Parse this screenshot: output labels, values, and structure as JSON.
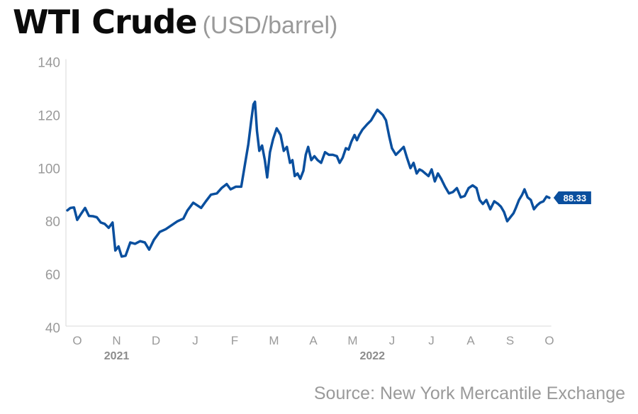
{
  "header": {
    "title": "WTI Crude",
    "subtitle": "(USD/barrel)"
  },
  "source": "Source: New York Mercantile Exchange",
  "colors": {
    "line": "#0a4f9e",
    "label_bg": "#0a4f9e",
    "axis_text": "#9a9a9a",
    "year_text": "#8c8c8c"
  },
  "chart_data": {
    "type": "line",
    "title": "WTI Crude",
    "subtitle": "(USD/barrel)",
    "ylim": [
      40,
      140
    ],
    "yticks": [
      40,
      60,
      80,
      100,
      120,
      140
    ],
    "xlim": [
      0,
      12.3
    ],
    "month_labels": [
      "O",
      "N",
      "D",
      "J",
      "F",
      "M",
      "A",
      "M",
      "J",
      "J",
      "A",
      "S",
      "O"
    ],
    "year_labels": [
      {
        "label": "2021",
        "month_index": 1
      },
      {
        "label": "2022",
        "month_index": 7.5
      }
    ],
    "grid": false,
    "end_value_label": "88.33",
    "series": [
      {
        "values": [
          [
            0.0,
            83.6
          ],
          [
            0.08,
            84.5
          ],
          [
            0.17,
            84.7
          ],
          [
            0.25,
            80.0
          ],
          [
            0.35,
            82.3
          ],
          [
            0.45,
            84.5
          ],
          [
            0.55,
            81.5
          ],
          [
            0.65,
            81.4
          ],
          [
            0.75,
            81.0
          ],
          [
            0.85,
            79.0
          ],
          [
            0.95,
            78.5
          ],
          [
            1.05,
            77.0
          ],
          [
            1.15,
            79.0
          ],
          [
            1.22,
            68.5
          ],
          [
            1.3,
            70.0
          ],
          [
            1.38,
            66.2
          ],
          [
            1.48,
            66.5
          ],
          [
            1.6,
            71.5
          ],
          [
            1.72,
            71.0
          ],
          [
            1.85,
            72.0
          ],
          [
            1.97,
            71.5
          ],
          [
            2.08,
            68.8
          ],
          [
            2.2,
            72.5
          ],
          [
            2.35,
            75.5
          ],
          [
            2.5,
            76.5
          ],
          [
            2.65,
            78.0
          ],
          [
            2.8,
            79.5
          ],
          [
            2.95,
            80.5
          ],
          [
            3.05,
            83.5
          ],
          [
            3.2,
            86.5
          ],
          [
            3.3,
            85.5
          ],
          [
            3.4,
            84.5
          ],
          [
            3.52,
            87.0
          ],
          [
            3.65,
            89.5
          ],
          [
            3.8,
            90.0
          ],
          [
            3.92,
            92.0
          ],
          [
            4.05,
            93.5
          ],
          [
            4.15,
            91.5
          ],
          [
            4.28,
            92.5
          ],
          [
            4.42,
            92.5
          ],
          [
            4.52,
            101.5
          ],
          [
            4.6,
            108.5
          ],
          [
            4.68,
            118.0
          ],
          [
            4.73,
            123.5
          ],
          [
            4.77,
            124.5
          ],
          [
            4.82,
            113.5
          ],
          [
            4.88,
            106.0
          ],
          [
            4.95,
            108.0
          ],
          [
            5.02,
            102.5
          ],
          [
            5.08,
            96.0
          ],
          [
            5.15,
            105.5
          ],
          [
            5.23,
            110.5
          ],
          [
            5.32,
            114.5
          ],
          [
            5.42,
            112.0
          ],
          [
            5.5,
            106.0
          ],
          [
            5.58,
            107.5
          ],
          [
            5.66,
            101.5
          ],
          [
            5.72,
            102.5
          ],
          [
            5.78,
            96.5
          ],
          [
            5.85,
            97.5
          ],
          [
            5.92,
            95.5
          ],
          [
            6.0,
            98.5
          ],
          [
            6.06,
            104.5
          ],
          [
            6.12,
            107.5
          ],
          [
            6.2,
            102.5
          ],
          [
            6.28,
            104.0
          ],
          [
            6.36,
            102.5
          ],
          [
            6.45,
            101.5
          ],
          [
            6.55,
            105.5
          ],
          [
            6.65,
            104.5
          ],
          [
            6.75,
            104.5
          ],
          [
            6.85,
            104.0
          ],
          [
            6.92,
            101.5
          ],
          [
            7.0,
            103.5
          ],
          [
            7.08,
            107.0
          ],
          [
            7.15,
            106.5
          ],
          [
            7.22,
            109.5
          ],
          [
            7.3,
            112.0
          ],
          [
            7.36,
            110.0
          ],
          [
            7.42,
            112.0
          ],
          [
            7.5,
            114.0
          ],
          [
            7.62,
            116.0
          ],
          [
            7.72,
            117.5
          ],
          [
            7.82,
            120.0
          ],
          [
            7.88,
            121.5
          ],
          [
            7.95,
            120.5
          ],
          [
            8.02,
            119.5
          ],
          [
            8.1,
            117.5
          ],
          [
            8.18,
            111.5
          ],
          [
            8.25,
            107.0
          ],
          [
            8.35,
            104.5
          ],
          [
            8.45,
            106.0
          ],
          [
            8.55,
            107.5
          ],
          [
            8.63,
            103.5
          ],
          [
            8.72,
            99.5
          ],
          [
            8.8,
            101.5
          ],
          [
            8.88,
            97.5
          ],
          [
            8.95,
            99.0
          ],
          [
            9.02,
            98.5
          ],
          [
            9.1,
            97.5
          ],
          [
            9.18,
            96.5
          ],
          [
            9.26,
            99.0
          ],
          [
            9.34,
            94.5
          ],
          [
            9.42,
            97.5
          ],
          [
            9.5,
            95.5
          ],
          [
            9.6,
            92.5
          ],
          [
            9.7,
            90.0
          ],
          [
            9.8,
            90.5
          ],
          [
            9.9,
            92.0
          ],
          [
            10.0,
            88.5
          ],
          [
            10.1,
            89.0
          ],
          [
            10.2,
            92.0
          ],
          [
            10.3,
            93.0
          ],
          [
            10.4,
            92.0
          ],
          [
            10.48,
            87.5
          ],
          [
            10.56,
            86.0
          ],
          [
            10.65,
            87.5
          ],
          [
            10.75,
            84.0
          ],
          [
            10.85,
            87.0
          ],
          [
            10.95,
            86.0
          ],
          [
            11.02,
            85.0
          ],
          [
            11.1,
            83.0
          ],
          [
            11.18,
            79.5
          ],
          [
            11.26,
            81.0
          ],
          [
            11.34,
            82.5
          ],
          [
            11.4,
            84.5
          ],
          [
            11.48,
            87.5
          ],
          [
            11.56,
            89.5
          ],
          [
            11.62,
            91.5
          ],
          [
            11.7,
            88.5
          ],
          [
            11.78,
            87.5
          ],
          [
            11.86,
            84.0
          ],
          [
            11.94,
            85.5
          ],
          [
            12.02,
            86.5
          ],
          [
            12.1,
            87.0
          ],
          [
            12.18,
            88.8
          ],
          [
            12.25,
            88.33
          ]
        ]
      }
    ]
  }
}
